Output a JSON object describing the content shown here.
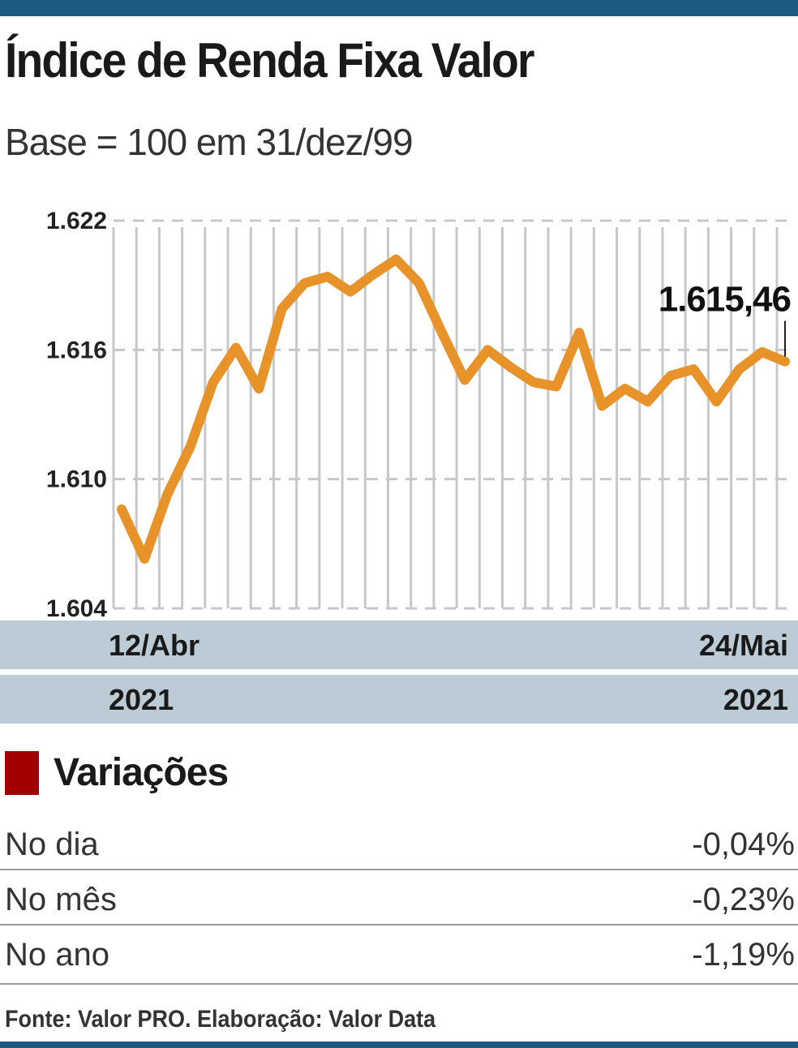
{
  "title": "Índice de Renda Fixa Valor",
  "subtitle": "Base = 100 em 31/dez/99",
  "chart_data": {
    "type": "line",
    "x_start_label": "12/Abr",
    "x_end_label": "24/Mai",
    "year_start": "2021",
    "year_end": "2021",
    "y_ticks": [
      1604,
      1610,
      1616,
      1622
    ],
    "y_tick_labels": [
      "1.604",
      "1.610",
      "1.616",
      "1.622"
    ],
    "ylim": [
      1604,
      1622
    ],
    "values": [
      1608.6,
      1606.3,
      1609.3,
      1611.5,
      1614.5,
      1616.1,
      1614.2,
      1617.9,
      1619.1,
      1619.4,
      1618.7,
      1619.5,
      1620.2,
      1619.1,
      1616.8,
      1614.6,
      1616.0,
      1615.2,
      1614.5,
      1614.3,
      1616.8,
      1613.4,
      1614.2,
      1613.6,
      1614.8,
      1615.1,
      1613.6,
      1615.1,
      1615.9,
      1615.46
    ],
    "last_label": "1.615,46",
    "line_color": "#e8922a",
    "grid": true
  },
  "variations": {
    "title": "Variações",
    "rows": [
      {
        "label": "No dia",
        "value": "-0,04%"
      },
      {
        "label": "No mês",
        "value": "-0,23%"
      },
      {
        "label": "No ano",
        "value": "-1,19%"
      }
    ]
  },
  "source": "Fonte: Valor PRO. Elaboração: Valor Data"
}
